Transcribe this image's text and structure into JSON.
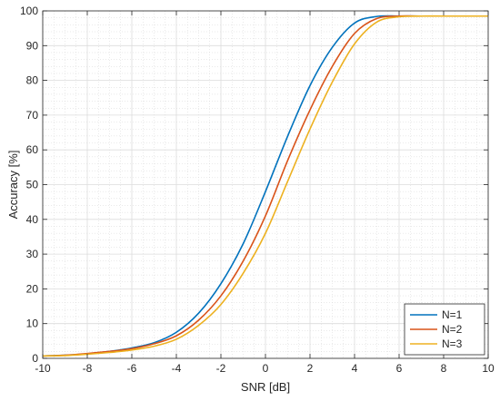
{
  "chart_data": {
    "type": "line",
    "title": "",
    "xlabel": "SNR [dB]",
    "ylabel": "Accuracy [%]",
    "xlim": [
      -10,
      10
    ],
    "ylim": [
      0,
      100
    ],
    "xticks": [
      -10,
      -8,
      -6,
      -4,
      -2,
      0,
      2,
      4,
      6,
      8,
      10
    ],
    "yticks": [
      0,
      10,
      20,
      30,
      40,
      50,
      60,
      70,
      80,
      90,
      100
    ],
    "grid": true,
    "minor_grid": true,
    "legend_position": "bottom-right",
    "x": [
      -10,
      -9,
      -8,
      -7,
      -6,
      -5,
      -4,
      -3,
      -2,
      -1,
      0,
      1,
      2,
      3,
      4,
      5,
      6,
      7,
      8,
      9,
      10
    ],
    "series": [
      {
        "name": "N=1",
        "color": "#0072BD",
        "values": [
          0.7,
          0.9,
          1.3,
          2.0,
          3.0,
          4.5,
          7.5,
          13.0,
          21.5,
          33.0,
          48.0,
          64.0,
          78.5,
          89.5,
          96.5,
          98.4,
          98.5,
          98.5,
          98.5,
          98.5,
          98.5
        ]
      },
      {
        "name": "N=2",
        "color": "#D95319",
        "values": [
          0.7,
          0.9,
          1.4,
          2.0,
          2.8,
          4.2,
          6.5,
          11.0,
          18.0,
          28.0,
          41.0,
          57.0,
          71.5,
          84.0,
          93.5,
          97.8,
          98.5,
          98.5,
          98.5,
          98.5,
          98.5
        ]
      },
      {
        "name": "N=3",
        "color": "#EDB120",
        "values": [
          0.7,
          0.8,
          1.2,
          1.7,
          2.4,
          3.5,
          5.5,
          9.5,
          15.5,
          24.5,
          36.0,
          51.0,
          66.0,
          79.5,
          90.5,
          96.8,
          98.3,
          98.5,
          98.5,
          98.5,
          98.5
        ]
      }
    ]
  }
}
